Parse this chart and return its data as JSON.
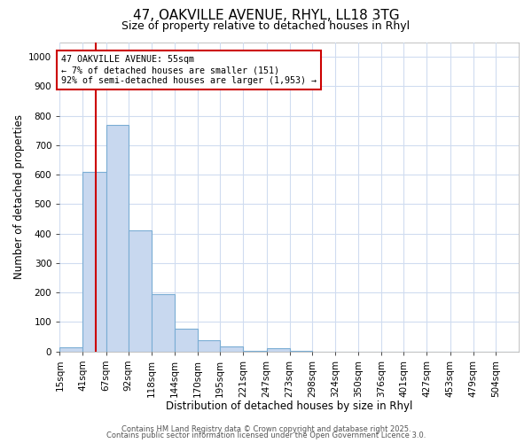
{
  "title": "47, OAKVILLE AVENUE, RHYL, LL18 3TG",
  "subtitle": "Size of property relative to detached houses in Rhyl",
  "xlabel": "Distribution of detached houses by size in Rhyl",
  "ylabel": "Number of detached properties",
  "bar_color": "#c8d8ef",
  "bar_edge_color": "#7aadd4",
  "bin_edges": [
    15,
    41,
    67,
    92,
    118,
    144,
    170,
    195,
    221,
    247,
    273,
    298,
    324,
    350,
    376,
    401,
    427,
    453,
    479,
    504,
    530
  ],
  "bar_heights": [
    15,
    608,
    770,
    412,
    193,
    78,
    38,
    18,
    2,
    12,
    2,
    0,
    0,
    0,
    0,
    0,
    0,
    0,
    0,
    0
  ],
  "property_size": 55,
  "vline_color": "#cc0000",
  "annotation_line1": "47 OAKVILLE AVENUE: 55sqm",
  "annotation_line2": "← 7% of detached houses are smaller (151)",
  "annotation_line3": "92% of semi-detached houses are larger (1,953) →",
  "annotation_box_color": "#ffffff",
  "annotation_box_edge_color": "#cc0000",
  "ylim": [
    0,
    1050
  ],
  "yticks": [
    0,
    100,
    200,
    300,
    400,
    500,
    600,
    700,
    800,
    900,
    1000
  ],
  "bg_color": "#ffffff",
  "plot_bg_color": "#ffffff",
  "grid_color": "#d0dcf0",
  "footer_line1": "Contains HM Land Registry data © Crown copyright and database right 2025.",
  "footer_line2": "Contains public sector information licensed under the Open Government Licence 3.0.",
  "title_fontsize": 11,
  "subtitle_fontsize": 9,
  "axis_label_fontsize": 8.5,
  "tick_fontsize": 7.5,
  "footer_fontsize": 6
}
